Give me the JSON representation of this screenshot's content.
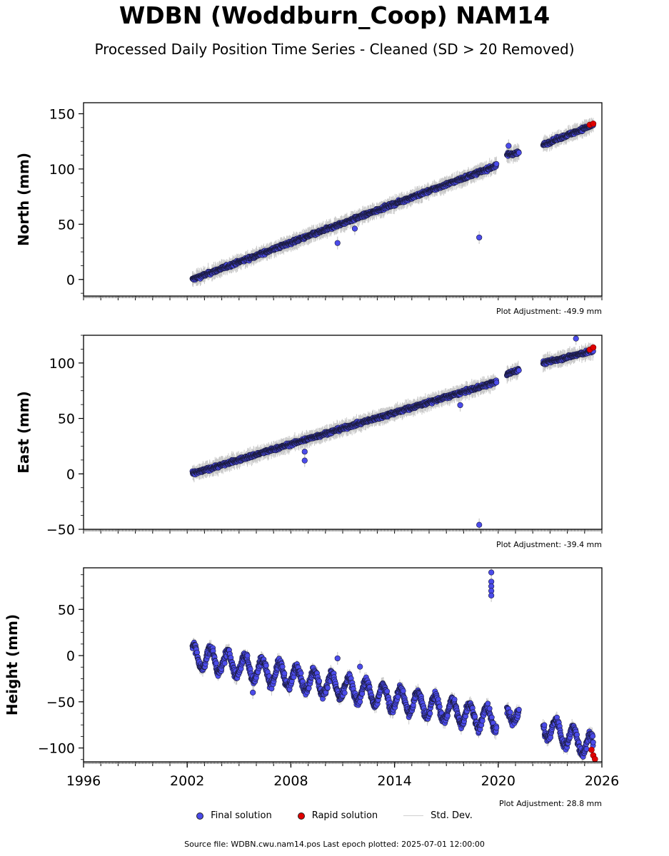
{
  "title": "WDBN (Woddburn_Coop) NAM14",
  "subtitle": "Processed Daily Position Time Series - Cleaned (SD > 20 Removed)",
  "colors": {
    "final": "#4b4bea",
    "rapid": "#e00000",
    "stddev": "#c8c8c8",
    "edge": "#1a1a3a"
  },
  "legend": {
    "final": "Final solution",
    "rapid": "Rapid solution",
    "stddev": "Std. Dev."
  },
  "source_note": "Source file: WDBN.cwu.nam14.pos  Last epoch plotted: 2025-07-01 12:00:00",
  "chart_data": [
    {
      "type": "scatter",
      "ylabel": "North (mm)",
      "xlim": [
        1996,
        2026
      ],
      "ylim": [
        -15,
        160
      ],
      "yticks": [
        0,
        50,
        100,
        150
      ],
      "xticks": [
        1996,
        2002,
        2008,
        2014,
        2020,
        2026
      ],
      "show_xtick_labels": false,
      "adjustment": "Plot Adjustment: -49.9 mm",
      "trend": [
        [
          2002.0,
          0
        ],
        [
          2020.2,
          103
        ]
      ],
      "segments": [
        {
          "x0": 2002.3,
          "y0": 0,
          "x1": 2019.9,
          "y1": 103
        },
        {
          "x0": 2020.5,
          "y0": 113,
          "x1": 2021.2,
          "y1": 115
        },
        {
          "x0": 2022.6,
          "y0": 122,
          "x1": 2025.5,
          "y1": 140
        }
      ],
      "outliers": [
        [
          2010.7,
          33
        ],
        [
          2011.7,
          46
        ],
        [
          2018.9,
          38
        ],
        [
          2020.6,
          121
        ]
      ],
      "rapid": [
        [
          2025.3,
          140
        ],
        [
          2025.5,
          141
        ]
      ]
    },
    {
      "type": "scatter",
      "ylabel": "East (mm)",
      "xlim": [
        1996,
        2026
      ],
      "ylim": [
        -50,
        125
      ],
      "yticks": [
        -50,
        0,
        50,
        100
      ],
      "xticks": [
        1996,
        2002,
        2008,
        2014,
        2020,
        2026
      ],
      "show_xtick_labels": false,
      "adjustment": "Plot Adjustment: -39.4 mm",
      "segments": [
        {
          "x0": 2002.3,
          "y0": 0,
          "x1": 2019.9,
          "y1": 83
        },
        {
          "x0": 2020.5,
          "y0": 90,
          "x1": 2021.2,
          "y1": 94
        },
        {
          "x0": 2022.6,
          "y0": 100,
          "x1": 2025.5,
          "y1": 111
        }
      ],
      "outliers": [
        [
          2008.8,
          20
        ],
        [
          2008.8,
          12
        ],
        [
          2017.8,
          62
        ],
        [
          2018.9,
          -46
        ],
        [
          2024.5,
          122
        ]
      ],
      "rapid": [
        [
          2025.3,
          112
        ],
        [
          2025.5,
          114
        ]
      ]
    },
    {
      "type": "scatter",
      "ylabel": "Height (mm)",
      "xlim": [
        1996,
        2026
      ],
      "ylim": [
        -115,
        95
      ],
      "yticks": [
        -100,
        -50,
        0,
        50
      ],
      "xticks": [
        1996,
        2002,
        2008,
        2014,
        2020,
        2026
      ],
      "xticklabels": [
        "1996",
        "2002",
        "2008",
        "2014",
        "2020",
        "2026"
      ],
      "show_xtick_labels": true,
      "adjustment": "Plot Adjustment: 28.8 mm",
      "segments": [
        {
          "x0": 2002.3,
          "y0": 0,
          "x1": 2019.9,
          "y1": -70,
          "amp": 12
        },
        {
          "x0": 2020.5,
          "y0": -60,
          "x1": 2021.2,
          "y1": -65,
          "amp": 8
        },
        {
          "x0": 2022.6,
          "y0": -75,
          "x1": 2025.5,
          "y1": -100,
          "amp": 12
        }
      ],
      "outliers": [
        [
          2019.6,
          90
        ],
        [
          2019.6,
          80
        ],
        [
          2019.6,
          75
        ],
        [
          2019.6,
          70
        ],
        [
          2019.6,
          65
        ],
        [
          2005.8,
          -40
        ],
        [
          2010.7,
          -3
        ],
        [
          2012.0,
          -12
        ]
      ],
      "rapid": [
        [
          2025.4,
          -102
        ],
        [
          2025.5,
          -108
        ],
        [
          2025.6,
          -112
        ]
      ]
    }
  ]
}
